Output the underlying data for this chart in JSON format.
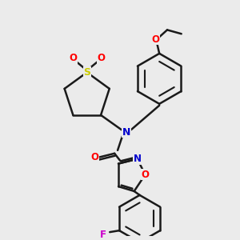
{
  "bg_color": "#ebebeb",
  "bond_color": "#1a1a1a",
  "bond_width": 1.8,
  "S_color": "#cccc00",
  "O_color": "#ff0000",
  "N_color": "#0000cc",
  "F_color": "#cc00cc",
  "figsize": [
    3.0,
    3.0
  ],
  "dpi": 100,
  "atoms": {
    "S": {
      "color": "#cccc00"
    },
    "O": {
      "color": "#ff0000"
    },
    "N": {
      "color": "#0000cc"
    },
    "F": {
      "color": "#cc00cc"
    }
  }
}
